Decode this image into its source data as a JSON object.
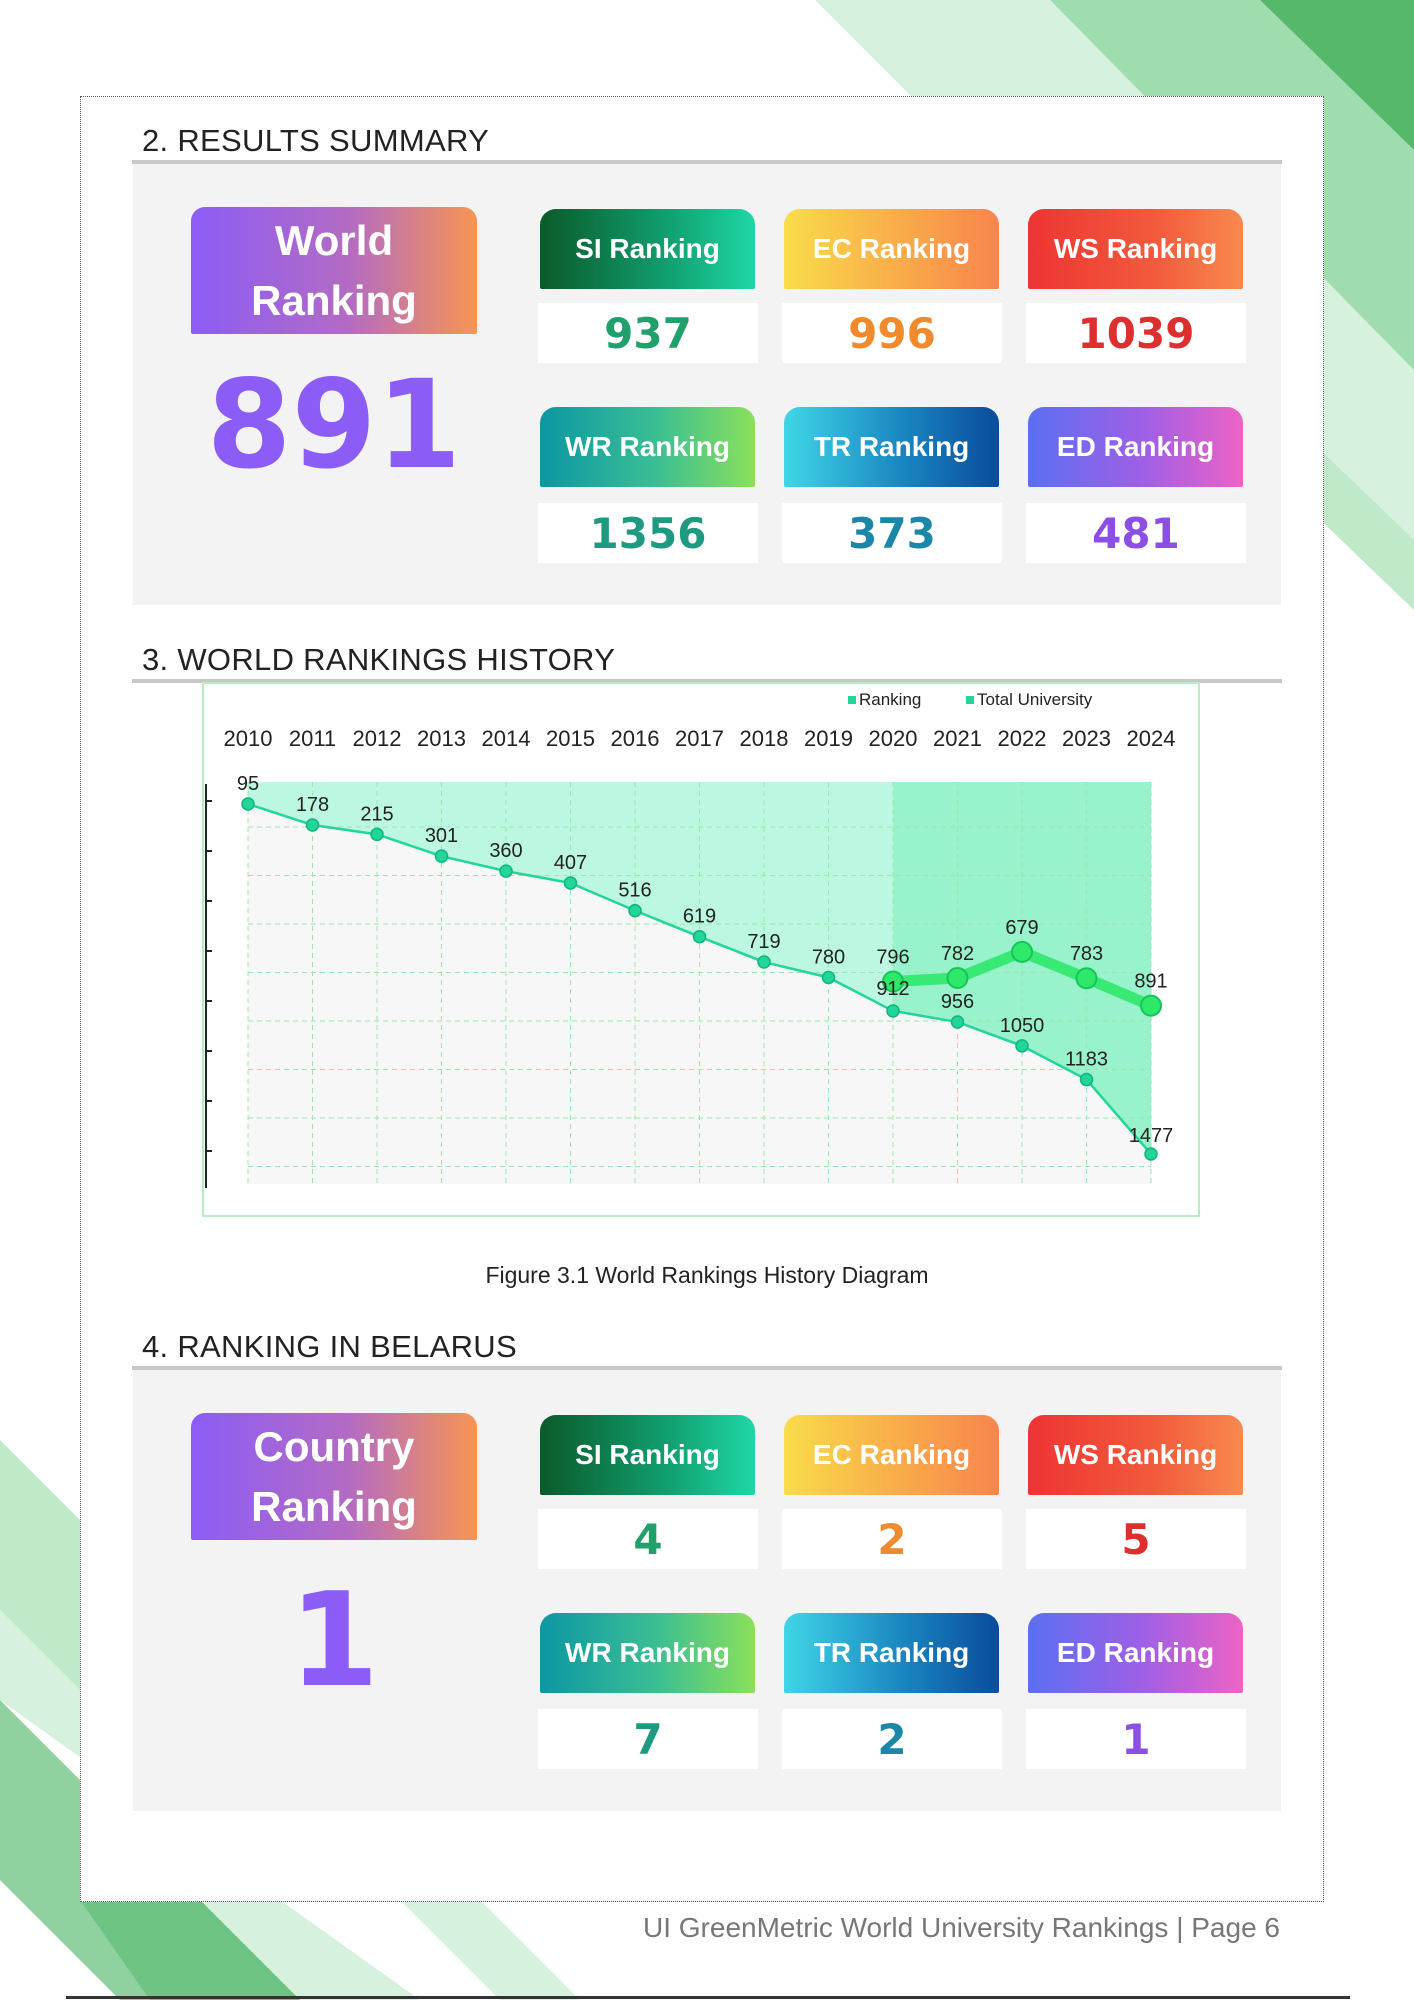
{
  "results_summary": {
    "title": "2. RESULTS SUMMARY",
    "world_label_line1": "World",
    "world_label_line2": "Ranking",
    "world_value": "891",
    "cards": [
      {
        "label": "SI Ranking",
        "value": "937"
      },
      {
        "label": "EC Ranking",
        "value": "996"
      },
      {
        "label": "WS Ranking",
        "value": "1039"
      },
      {
        "label": "WR Ranking",
        "value": "1356"
      },
      {
        "label": "TR Ranking",
        "value": "373"
      },
      {
        "label": "ED Ranking",
        "value": "481"
      }
    ]
  },
  "history": {
    "title": "3. WORLD RANKINGS HISTORY",
    "caption": "Figure 3.1 World Rankings History Diagram"
  },
  "chart_data": {
    "type": "line",
    "x": [
      "2010",
      "2011",
      "2012",
      "2013",
      "2014",
      "2015",
      "2016",
      "2017",
      "2018",
      "2019",
      "2020",
      "2021",
      "2022",
      "2023",
      "2024"
    ],
    "series": [
      {
        "name": "Ranking",
        "x": [
          "2020",
          "2021",
          "2022",
          "2023",
          "2024"
        ],
        "values": [
          796,
          782,
          679,
          783,
          891
        ]
      },
      {
        "name": "Total University",
        "x": [
          "2010",
          "2011",
          "2012",
          "2013",
          "2014",
          "2015",
          "2016",
          "2017",
          "2018",
          "2019",
          "2020",
          "2021",
          "2022",
          "2023",
          "2024"
        ],
        "values": [
          95,
          178,
          215,
          301,
          360,
          407,
          516,
          619,
          719,
          780,
          912,
          956,
          1050,
          1183,
          1477
        ]
      }
    ],
    "y_inverted": true,
    "x_axis_position": "top",
    "legend_position": "top-right",
    "grid": true,
    "colors": {
      "ranking": "#2ee86a",
      "total": "#22d69a",
      "area": "#b4f6de",
      "highlight": "#8cf0c3"
    }
  },
  "belarus": {
    "title": "4. RANKING IN BELARUS",
    "country_label_line1": "Country",
    "country_label_line2": "Ranking",
    "country_value": "1",
    "cards": [
      {
        "label": "SI Ranking",
        "value": "4"
      },
      {
        "label": "EC Ranking",
        "value": "2"
      },
      {
        "label": "WS Ranking",
        "value": "5"
      },
      {
        "label": "WR Ranking",
        "value": "7"
      },
      {
        "label": "TR Ranking",
        "value": "2"
      },
      {
        "label": "ED Ranking",
        "value": "1"
      }
    ]
  },
  "footer": {
    "text": "UI GreenMetric World University Rankings | Page 6"
  }
}
